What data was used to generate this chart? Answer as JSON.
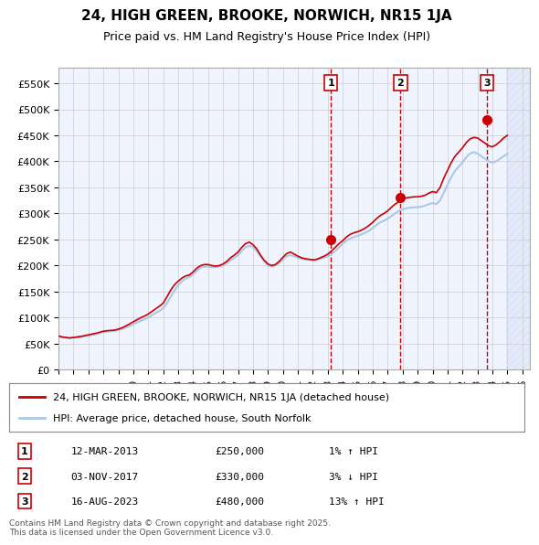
{
  "title": "24, HIGH GREEN, BROOKE, NORWICH, NR15 1JA",
  "subtitle": "Price paid vs. HM Land Registry's House Price Index (HPI)",
  "ylabel": "",
  "ylim": [
    0,
    580000
  ],
  "yticks": [
    0,
    50000,
    100000,
    150000,
    200000,
    250000,
    300000,
    350000,
    400000,
    450000,
    500000,
    550000
  ],
  "xlim_start": 1995.0,
  "xlim_end": 2026.5,
  "background_color": "#ffffff",
  "plot_bg_color": "#f0f4ff",
  "grid_color": "#cccccc",
  "hpi_line_color": "#aac8e8",
  "price_line_color": "#cc0000",
  "sale_marker_color": "#cc0000",
  "purchase_marker_color": "#8b0000",
  "hatch_region_color": "#d0d8f0",
  "transaction_vline_color": "#cc0000",
  "annotations": [
    {
      "label": "1",
      "year": 2013.2,
      "price": 250000,
      "date": "12-MAR-2013",
      "amount": "£250,000",
      "pct": "1%",
      "dir": "↑"
    },
    {
      "label": "2",
      "year": 2017.85,
      "price": 330000,
      "date": "03-NOV-2017",
      "amount": "£330,000",
      "pct": "3%",
      "dir": "↓"
    },
    {
      "label": "3",
      "year": 2023.62,
      "price": 480000,
      "date": "16-AUG-2023",
      "amount": "£480,000",
      "pct": "13%",
      "dir": "↑"
    }
  ],
  "legend_line1": "24, HIGH GREEN, BROOKE, NORWICH, NR15 1JA (detached house)",
  "legend_line2": "HPI: Average price, detached house, South Norfolk",
  "footnote": "Contains HM Land Registry data © Crown copyright and database right 2025.\nThis data is licensed under the Open Government Licence v3.0.",
  "hpi_data": [
    [
      1995.0,
      63000
    ],
    [
      1995.25,
      62000
    ],
    [
      1995.5,
      61500
    ],
    [
      1995.75,
      61000
    ],
    [
      1996.0,
      61500
    ],
    [
      1996.25,
      62000
    ],
    [
      1996.5,
      63000
    ],
    [
      1996.75,
      64000
    ],
    [
      1997.0,
      65000
    ],
    [
      1997.25,
      66500
    ],
    [
      1997.5,
      68000
    ],
    [
      1997.75,
      70000
    ],
    [
      1998.0,
      72000
    ],
    [
      1998.25,
      73500
    ],
    [
      1998.5,
      74000
    ],
    [
      1998.75,
      74500
    ],
    [
      1999.0,
      76000
    ],
    [
      1999.25,
      78000
    ],
    [
      1999.5,
      81000
    ],
    [
      1999.75,
      84000
    ],
    [
      2000.0,
      87000
    ],
    [
      2000.25,
      91000
    ],
    [
      2000.5,
      94000
    ],
    [
      2000.75,
      97000
    ],
    [
      2001.0,
      100000
    ],
    [
      2001.25,
      105000
    ],
    [
      2001.5,
      109000
    ],
    [
      2001.75,
      113000
    ],
    [
      2002.0,
      118000
    ],
    [
      2002.25,
      128000
    ],
    [
      2002.5,
      140000
    ],
    [
      2002.75,
      152000
    ],
    [
      2003.0,
      162000
    ],
    [
      2003.25,
      170000
    ],
    [
      2003.5,
      175000
    ],
    [
      2003.75,
      178000
    ],
    [
      2004.0,
      183000
    ],
    [
      2004.25,
      190000
    ],
    [
      2004.5,
      196000
    ],
    [
      2004.75,
      198000
    ],
    [
      2005.0,
      198000
    ],
    [
      2005.25,
      197000
    ],
    [
      2005.5,
      197000
    ],
    [
      2005.75,
      198000
    ],
    [
      2006.0,
      200000
    ],
    [
      2006.25,
      205000
    ],
    [
      2006.5,
      210000
    ],
    [
      2006.75,
      215000
    ],
    [
      2007.0,
      220000
    ],
    [
      2007.25,
      228000
    ],
    [
      2007.5,
      235000
    ],
    [
      2007.75,
      238000
    ],
    [
      2008.0,
      235000
    ],
    [
      2008.25,
      228000
    ],
    [
      2008.5,
      218000
    ],
    [
      2008.75,
      208000
    ],
    [
      2009.0,
      200000
    ],
    [
      2009.25,
      198000
    ],
    [
      2009.5,
      200000
    ],
    [
      2009.75,
      205000
    ],
    [
      2010.0,
      212000
    ],
    [
      2010.25,
      218000
    ],
    [
      2010.5,
      220000
    ],
    [
      2010.75,
      218000
    ],
    [
      2011.0,
      215000
    ],
    [
      2011.25,
      213000
    ],
    [
      2011.5,
      212000
    ],
    [
      2011.75,
      211000
    ],
    [
      2012.0,
      210000
    ],
    [
      2012.25,
      211000
    ],
    [
      2012.5,
      213000
    ],
    [
      2012.75,
      215000
    ],
    [
      2013.0,
      218000
    ],
    [
      2013.25,
      222000
    ],
    [
      2013.5,
      228000
    ],
    [
      2013.75,
      235000
    ],
    [
      2014.0,
      242000
    ],
    [
      2014.25,
      248000
    ],
    [
      2014.5,
      252000
    ],
    [
      2014.75,
      255000
    ],
    [
      2015.0,
      257000
    ],
    [
      2015.25,
      260000
    ],
    [
      2015.5,
      263000
    ],
    [
      2015.75,
      267000
    ],
    [
      2016.0,
      272000
    ],
    [
      2016.25,
      278000
    ],
    [
      2016.5,
      283000
    ],
    [
      2016.75,
      286000
    ],
    [
      2017.0,
      290000
    ],
    [
      2017.25,
      295000
    ],
    [
      2017.5,
      300000
    ],
    [
      2017.75,
      305000
    ],
    [
      2018.0,
      308000
    ],
    [
      2018.25,
      310000
    ],
    [
      2018.5,
      311000
    ],
    [
      2018.75,
      312000
    ],
    [
      2019.0,
      312000
    ],
    [
      2019.25,
      313000
    ],
    [
      2019.5,
      315000
    ],
    [
      2019.75,
      318000
    ],
    [
      2020.0,
      320000
    ],
    [
      2020.25,
      318000
    ],
    [
      2020.5,
      325000
    ],
    [
      2020.75,
      340000
    ],
    [
      2021.0,
      355000
    ],
    [
      2021.25,
      370000
    ],
    [
      2021.5,
      382000
    ],
    [
      2021.75,
      390000
    ],
    [
      2022.0,
      398000
    ],
    [
      2022.25,
      408000
    ],
    [
      2022.5,
      415000
    ],
    [
      2022.75,
      418000
    ],
    [
      2023.0,
      415000
    ],
    [
      2023.25,
      410000
    ],
    [
      2023.5,
      405000
    ],
    [
      2023.75,
      400000
    ],
    [
      2024.0,
      398000
    ],
    [
      2024.25,
      400000
    ],
    [
      2024.5,
      405000
    ],
    [
      2024.75,
      410000
    ],
    [
      2025.0,
      415000
    ]
  ],
  "price_data": [
    [
      1995.0,
      65000
    ],
    [
      1995.25,
      63000
    ],
    [
      1995.5,
      62000
    ],
    [
      1995.75,
      61000
    ],
    [
      1996.0,
      62000
    ],
    [
      1996.25,
      63000
    ],
    [
      1996.5,
      64000
    ],
    [
      1996.75,
      65500
    ],
    [
      1997.0,
      67000
    ],
    [
      1997.25,
      68500
    ],
    [
      1997.5,
      70000
    ],
    [
      1997.75,
      72000
    ],
    [
      1998.0,
      74000
    ],
    [
      1998.25,
      75000
    ],
    [
      1998.5,
      75500
    ],
    [
      1998.75,
      76000
    ],
    [
      1999.0,
      78000
    ],
    [
      1999.25,
      80500
    ],
    [
      1999.5,
      84000
    ],
    [
      1999.75,
      88000
    ],
    [
      2000.0,
      92000
    ],
    [
      2000.25,
      96000
    ],
    [
      2000.5,
      100000
    ],
    [
      2000.75,
      103000
    ],
    [
      2001.0,
      107000
    ],
    [
      2001.25,
      112000
    ],
    [
      2001.5,
      117000
    ],
    [
      2001.75,
      122000
    ],
    [
      2002.0,
      128000
    ],
    [
      2002.25,
      140000
    ],
    [
      2002.5,
      153000
    ],
    [
      2002.75,
      163000
    ],
    [
      2003.0,
      170000
    ],
    [
      2003.25,
      176000
    ],
    [
      2003.5,
      180000
    ],
    [
      2003.75,
      182000
    ],
    [
      2004.0,
      188000
    ],
    [
      2004.25,
      195000
    ],
    [
      2004.5,
      200000
    ],
    [
      2004.75,
      202000
    ],
    [
      2005.0,
      202000
    ],
    [
      2005.25,
      200000
    ],
    [
      2005.5,
      199000
    ],
    [
      2005.75,
      200000
    ],
    [
      2006.0,
      203000
    ],
    [
      2006.25,
      208000
    ],
    [
      2006.5,
      215000
    ],
    [
      2006.75,
      220000
    ],
    [
      2007.0,
      226000
    ],
    [
      2007.25,
      235000
    ],
    [
      2007.5,
      242000
    ],
    [
      2007.75,
      245000
    ],
    [
      2008.0,
      240000
    ],
    [
      2008.25,
      232000
    ],
    [
      2008.5,
      220000
    ],
    [
      2008.75,
      210000
    ],
    [
      2009.0,
      203000
    ],
    [
      2009.25,
      200000
    ],
    [
      2009.5,
      202000
    ],
    [
      2009.75,
      208000
    ],
    [
      2010.0,
      216000
    ],
    [
      2010.25,
      223000
    ],
    [
      2010.5,
      226000
    ],
    [
      2010.75,
      222000
    ],
    [
      2011.0,
      218000
    ],
    [
      2011.25,
      215000
    ],
    [
      2011.5,
      213000
    ],
    [
      2011.75,
      212000
    ],
    [
      2012.0,
      211000
    ],
    [
      2012.25,
      212000
    ],
    [
      2012.5,
      215000
    ],
    [
      2012.75,
      218000
    ],
    [
      2013.0,
      222000
    ],
    [
      2013.25,
      228000
    ],
    [
      2013.5,
      235000
    ],
    [
      2013.75,
      242000
    ],
    [
      2014.0,
      248000
    ],
    [
      2014.25,
      255000
    ],
    [
      2014.5,
      260000
    ],
    [
      2014.75,
      263000
    ],
    [
      2015.0,
      265000
    ],
    [
      2015.25,
      268000
    ],
    [
      2015.5,
      272000
    ],
    [
      2015.75,
      277000
    ],
    [
      2016.0,
      283000
    ],
    [
      2016.25,
      290000
    ],
    [
      2016.5,
      296000
    ],
    [
      2016.75,
      300000
    ],
    [
      2017.0,
      305000
    ],
    [
      2017.25,
      312000
    ],
    [
      2017.5,
      318000
    ],
    [
      2017.75,
      323000
    ],
    [
      2018.0,
      327000
    ],
    [
      2018.25,
      330000
    ],
    [
      2018.5,
      331000
    ],
    [
      2018.75,
      332000
    ],
    [
      2019.0,
      332000
    ],
    [
      2019.25,
      333000
    ],
    [
      2019.5,
      335000
    ],
    [
      2019.75,
      339000
    ],
    [
      2020.0,
      342000
    ],
    [
      2020.25,
      340000
    ],
    [
      2020.5,
      350000
    ],
    [
      2020.75,
      368000
    ],
    [
      2021.0,
      383000
    ],
    [
      2021.25,
      398000
    ],
    [
      2021.5,
      410000
    ],
    [
      2021.75,
      418000
    ],
    [
      2022.0,
      426000
    ],
    [
      2022.25,
      436000
    ],
    [
      2022.5,
      443000
    ],
    [
      2022.75,
      446000
    ],
    [
      2023.0,
      445000
    ],
    [
      2023.25,
      440000
    ],
    [
      2023.5,
      435000
    ],
    [
      2023.75,
      430000
    ],
    [
      2024.0,
      428000
    ],
    [
      2024.25,
      432000
    ],
    [
      2024.5,
      438000
    ],
    [
      2024.75,
      445000
    ],
    [
      2025.0,
      450000
    ]
  ]
}
